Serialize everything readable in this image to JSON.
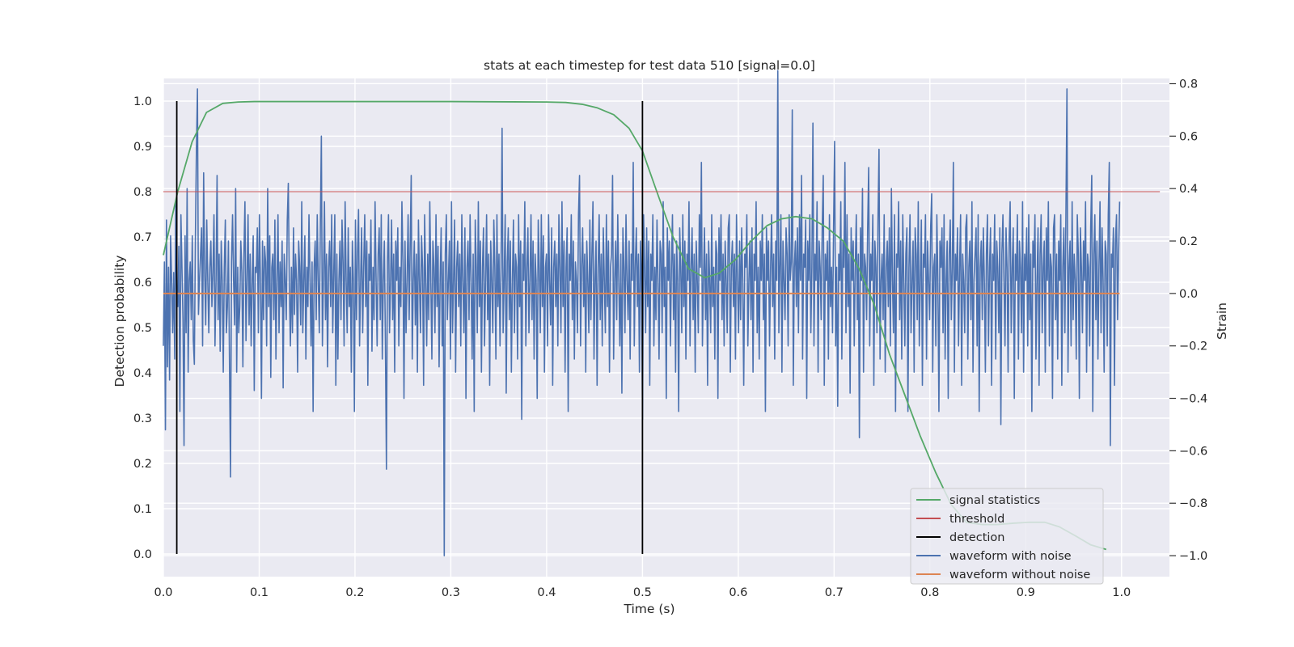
{
  "chart_data": {
    "type": "line",
    "title": "stats at each timestep for test data 510 [signal=0.0]",
    "xlabel": "Time (s)",
    "ylabel": "Detection probability",
    "y2label": "Strain",
    "xlim": [
      0.0,
      1.05
    ],
    "ylim": [
      -0.05,
      1.05
    ],
    "y2lim": [
      -1.08,
      0.82
    ],
    "x_ticks": [
      "0.0",
      "0.1",
      "0.2",
      "0.3",
      "0.4",
      "0.5",
      "0.6",
      "0.7",
      "0.8",
      "0.9",
      "1.0"
    ],
    "y_ticks": [
      "0.0",
      "0.1",
      "0.2",
      "0.3",
      "0.4",
      "0.5",
      "0.6",
      "0.7",
      "0.8",
      "0.9",
      "1.0"
    ],
    "y2_ticks": [
      "−1.0",
      "−0.8",
      "−0.6",
      "−0.4",
      "−0.2",
      "0.0",
      "0.2",
      "0.4",
      "0.6",
      "0.8"
    ],
    "grid": true,
    "legend_position": "lower-right",
    "colors": {
      "background": "#eaeaf2",
      "signal": "#55a868",
      "threshold": "#c44e52",
      "detection": "#000000",
      "noisy": "#4c72b0",
      "clean": "#dd8452"
    },
    "series": [
      {
        "name": "signal statistics",
        "axis": "left",
        "x": [
          0.0,
          0.015,
          0.03,
          0.045,
          0.062,
          0.078,
          0.095,
          0.2,
          0.3,
          0.4,
          0.42,
          0.437,
          0.453,
          0.47,
          0.486,
          0.5,
          0.515,
          0.532,
          0.548,
          0.565,
          0.58,
          0.597,
          0.613,
          0.63,
          0.645,
          0.66,
          0.677,
          0.693,
          0.71,
          0.726,
          0.742,
          0.758,
          0.774,
          0.79,
          0.806,
          0.822,
          0.838,
          0.855,
          0.87,
          0.887,
          0.903,
          0.92,
          0.935,
          0.952,
          0.968,
          0.984
        ],
        "values": [
          0.66,
          0.8,
          0.91,
          0.975,
          0.995,
          0.998,
          0.999,
          0.999,
          0.999,
          0.998,
          0.997,
          0.993,
          0.985,
          0.97,
          0.94,
          0.89,
          0.8,
          0.7,
          0.63,
          0.61,
          0.62,
          0.65,
          0.69,
          0.725,
          0.74,
          0.745,
          0.74,
          0.72,
          0.69,
          0.63,
          0.55,
          0.44,
          0.35,
          0.26,
          0.18,
          0.11,
          0.07,
          0.065,
          0.065,
          0.068,
          0.07,
          0.07,
          0.06,
          0.04,
          0.02,
          0.01
        ]
      },
      {
        "name": "threshold",
        "axis": "left",
        "x": [
          0.0,
          1.04
        ],
        "values": [
          0.8,
          0.8
        ]
      },
      {
        "name": "detection",
        "axis": "left",
        "x": [
          0.014,
          0.5
        ],
        "values": [
          1.0,
          1.0
        ]
      },
      {
        "name": "waveform with noise",
        "axis": "right",
        "x_start": 0.0,
        "x_end": 0.998,
        "values": [
          -0.2,
          0.12,
          -0.52,
          0.28,
          -0.28,
          0.1,
          -0.33,
          0.22,
          0.05,
          -0.15,
          0.08,
          -0.25,
          0.35,
          0.02,
          -0.05,
          0.18,
          -0.45,
          0.3,
          0.1,
          -0.1,
          -0.58,
          0.22,
          -0.15,
          0.4,
          -0.3,
          0.05,
          0.12,
          -0.1,
          0.22,
          -0.18,
          -0.27,
          0.2,
          0.55,
          0.78,
          -0.08,
          0.05,
          0.15,
          0.25,
          -0.2,
          0.46,
          0.08,
          -0.12,
          0.28,
          0.05,
          -0.15,
          0.1,
          0.2,
          -0.05,
          0.08,
          0.3,
          -0.2,
          0.05,
          0.45,
          -0.1,
          0.15,
          -0.22,
          0.2,
          0.05,
          -0.3,
          0.1,
          0.28,
          -0.15,
          -0.05,
          0.2,
          -0.25,
          -0.7,
          0.12,
          0.3,
          0.05,
          -0.12,
          0.4,
          -0.3,
          0.1,
          -0.15,
          -0.05,
          0.2,
          0.08,
          -0.28,
          0.15,
          0.35,
          -0.18,
          0.05,
          0.3,
          -0.12,
          0.15,
          -0.2,
          0.05,
          0.22,
          -0.37,
          0.1,
          0.08,
          0.25,
          -0.15,
          0.3,
          0.05,
          -0.4,
          0.2,
          -0.1,
          0.18,
          0.12,
          -0.2,
          0.4,
          -0.05,
          0.22,
          -0.32,
          0.1,
          0.15,
          -0.1,
          0.28,
          -0.25,
          0.05,
          0.3,
          -0.15,
          0.12,
          -0.05,
          0.2,
          -0.36,
          0.15,
          0.05,
          -0.1,
          0.28,
          0.42,
          0.02,
          -0.2,
          0.1,
          -0.15,
          0.25,
          -0.08,
          0.15,
          0.05,
          -0.3,
          0.2,
          0.1,
          -0.12,
          0.35,
          -0.15,
          0.05,
          0.22,
          -0.25,
          0.1,
          -0.05,
          0.3,
          0.05,
          -0.2,
          0.12,
          -0.45,
          0.1,
          0.2,
          -0.1,
          0.3,
          0.05,
          -0.15,
          0.25,
          0.6,
          -0.2,
          0.05,
          0.35,
          -0.1,
          0.15,
          -0.28,
          0.1,
          0.2,
          -0.05,
          0.3,
          -0.15,
          0.08,
          0.3,
          -0.35,
          0.15,
          -0.25,
          0.05,
          0.2,
          -0.1,
          0.28,
          0.12,
          -0.2,
          0.35,
          0.05,
          -0.15,
          0.25,
          -0.05,
          0.1,
          -0.3,
          0.2,
          0.05,
          -0.45,
          0.28,
          -0.1,
          0.15,
          0.32,
          -0.2,
          0.05,
          0.25,
          -0.15,
          0.1,
          0.3,
          -0.05,
          0.2,
          -0.35,
          0.15,
          0.05,
          0.28,
          -0.22,
          0.1,
          -0.1,
          0.35,
          0.05,
          -0.2,
          0.15,
          0.25,
          -0.1,
          0.3,
          -0.25,
          0.05,
          0.2,
          -0.18,
          -0.67,
          0.12,
          0.3,
          -0.15,
          0.05,
          0.28,
          -0.1,
          0.15,
          -0.3,
          0.2,
          0.05,
          0.25,
          -0.2,
          0.1,
          -0.05,
          0.35,
          0.12,
          -0.4,
          0.2,
          -0.15,
          0.05,
          0.3,
          -0.1,
          0.18,
          0.45,
          -0.25,
          0.05,
          0.2,
          -0.12,
          0.15,
          -0.3,
          0.28,
          0.05,
          -0.15,
          0.22,
          0.1,
          -0.35,
          0.3,
          0.05,
          -0.2,
          0.15,
          -0.1,
          0.35,
          0.05,
          -0.25,
          0.2,
          0.1,
          -0.15,
          0.3,
          -0.05,
          0.18,
          -0.28,
          0.05,
          0.25,
          -0.2,
          0.12,
          -1.0,
          0.15,
          0.3,
          -0.1,
          0.05,
          0.2,
          -0.25,
          0.35,
          -0.15,
          0.05,
          0.28,
          -0.3,
          0.1,
          0.2,
          -0.05,
          0.15,
          -0.2,
          0.3,
          0.05,
          -0.15,
          0.25,
          -0.4,
          0.1,
          0.2,
          -0.1,
          0.3,
          0.05,
          -0.25,
          0.15,
          -0.45,
          0.28,
          0.1,
          -0.15,
          0.35,
          -0.05,
          0.2,
          -0.3,
          0.1,
          0.25,
          -0.2,
          0.05,
          0.3,
          -0.1,
          0.15,
          -0.35,
          0.2,
          0.05,
          -0.15,
          0.28,
          0.1,
          -0.25,
          0.3,
          -0.05,
          0.15,
          -0.2,
          0.1,
          0.63,
          -0.15,
          0.05,
          0.3,
          -0.38,
          0.12,
          0.25,
          -0.1,
          0.2,
          -0.3,
          0.05,
          0.28,
          -0.15,
          0.15,
          0.1,
          -0.25,
          0.3,
          -0.05,
          0.2,
          -0.48,
          0.15,
          0.05,
          0.35,
          -0.2,
          0.1,
          0.25,
          -0.15,
          0.05,
          0.3,
          -0.1,
          0.2,
          -0.25,
          0.15,
          0.05,
          -0.4,
          0.28,
          0.1,
          -0.15,
          0.3,
          -0.05,
          0.22,
          -0.3,
          0.1,
          0.15,
          -0.2,
          0.3,
          0.05,
          -0.12,
          0.25,
          -0.35,
          0.1,
          0.2,
          -0.05,
          0.15,
          -0.2,
          0.3,
          0.1,
          -0.15,
          0.35,
          -0.05,
          0.2,
          -0.3,
          0.1,
          0.25,
          -0.45,
          0.15,
          0.05,
          0.3,
          -0.1,
          0.2,
          -0.25,
          0.12,
          0.05,
          -0.15,
          0.3,
          0.45,
          -0.2,
          0.1,
          0.25,
          -0.05,
          0.15,
          -0.3,
          0.2,
          0.05,
          -0.15,
          0.28,
          -0.1,
          0.15,
          0.35,
          -0.25,
          0.05,
          0.2,
          -0.35,
          0.1,
          0.3,
          -0.1,
          0.15,
          -0.2,
          0.25,
          0.05,
          -0.15,
          0.3,
          -0.05,
          0.2,
          -0.3,
          0.1,
          0.15,
          0.45,
          -0.25,
          0.05,
          0.2,
          -0.1,
          0.3,
          0.05,
          -0.2,
          0.15,
          -0.38,
          0.25,
          0.1,
          -0.15,
          0.3,
          0.05,
          -0.1,
          0.2,
          -0.25,
          0.15,
          0.05,
          0.5,
          -0.2,
          0.1,
          0.25,
          -0.05,
          0.15,
          -0.3,
          0.2,
          0.05,
          -0.48,
          0.3,
          0.1,
          -0.15,
          0.25,
          -0.05,
          0.2,
          -0.35,
          0.15,
          0.05,
          0.3,
          -0.2,
          0.1,
          -0.1,
          0.28,
          0.05,
          -0.25,
          0.2,
          0.15,
          -0.15,
          0.35,
          -0.05,
          0.1,
          -0.4,
          0.25,
          0.05,
          0.2,
          -0.2,
          0.1,
          0.3,
          -0.1,
          0.15,
          -0.3,
          0.2,
          0.05,
          -0.45,
          0.25,
          0.1,
          -0.15,
          0.3,
          -0.05,
          0.2,
          -0.25,
          0.15,
          0.05,
          0.35,
          -0.2,
          0.1,
          0.25,
          -0.1,
          0.15,
          -0.3,
          0.2,
          0.05,
          -0.15,
          0.3,
          0.1,
          0.5,
          -0.2,
          0.05,
          0.25,
          -0.1,
          0.15,
          -0.35,
          0.2,
          0.05,
          -0.15,
          0.3,
          -0.05,
          0.1,
          -0.25,
          0.2,
          0.15,
          -0.4,
          0.25,
          0.05,
          0.3,
          -0.1,
          0.15,
          -0.2,
          0.2,
          0.05,
          -0.15,
          0.25,
          0.3,
          -0.3,
          0.1,
          0.2,
          -0.05,
          0.15,
          -0.25,
          0.3,
          0.05,
          -0.15,
          0.2,
          -0.1,
          0.25,
          0.05,
          -0.35,
          0.15,
          0.1,
          0.3,
          -0.2,
          0.05,
          0.2,
          -0.1,
          0.25,
          -0.3,
          0.15,
          0.05,
          0.35,
          -0.15,
          0.1,
          -0.25,
          0.2,
          0.05,
          0.3,
          -0.1,
          0.15,
          -0.45,
          0.25,
          0.05,
          0.2,
          -0.2,
          0.1,
          0.3,
          -0.05,
          0.15,
          -0.25,
          0.2,
          0.05,
          0.85,
          -0.15,
          0.1,
          0.3,
          -0.3,
          0.2,
          0.05,
          -0.1,
          0.25,
          0.15,
          -0.2,
          0.3,
          0.05,
          0.12,
          0.7,
          -0.35,
          0.1,
          0.2,
          -0.05,
          0.25,
          -0.15,
          0.3,
          0.05,
          0.45,
          -0.25,
          0.15,
          0.1,
          0.28,
          -0.4,
          0.2,
          0.05,
          0.3,
          -0.15,
          0.1,
          0.65,
          -0.2,
          0.15,
          0.05,
          0.35,
          -0.3,
          0.2,
          0.1,
          -0.1,
          0.25,
          0.45,
          -0.35,
          0.15,
          0.05,
          0.2,
          -0.25,
          0.3,
          -0.05,
          0.1,
          -0.15,
          0.25,
          0.58,
          -0.2,
          0.1,
          -0.43,
          0.15,
          0.05,
          0.35,
          -0.25,
          0.2,
          0.1,
          0.5,
          -0.15,
          0.3,
          -0.05,
          0.15,
          -0.38,
          0.25,
          0.05,
          0.2,
          -0.2,
          0.1,
          0.3,
          -0.1,
          0.15,
          -0.55,
          0.25,
          0.05,
          0.4,
          -0.3,
          0.15,
          0.1,
          -0.1,
          0.25,
          0.48,
          -0.2,
          0.15,
          0.05,
          0.3,
          -0.35,
          0.2,
          0.1,
          -0.15,
          0.28,
          0.55,
          -0.25,
          0.05,
          0.15,
          -0.1,
          0.3,
          -0.3,
          0.1,
          0.2,
          -0.05,
          0.25,
          -0.2,
          0.4,
          0.05,
          -0.15,
          0.3,
          -0.45,
          0.15,
          0.1,
          0.35,
          -0.1,
          0.2,
          -0.25,
          0.3,
          0.05,
          -0.2,
          0.15,
          0.25,
          -0.45,
          0.1,
          0.3,
          -0.15,
          0.05,
          0.2,
          -0.3,
          0.25,
          0.15,
          -0.1,
          0.35,
          -0.2,
          0.05,
          0.28,
          -0.35,
          0.15,
          0.1,
          0.3,
          -0.25,
          0.2,
          0.05,
          -0.1,
          0.25,
          0.38,
          -0.3,
          0.1,
          0.15,
          -0.2,
          0.3,
          0.05,
          -0.45,
          0.2,
          0.1,
          0.25,
          -0.15,
          0.3,
          -0.25,
          0.05,
          0.2,
          -0.4,
          0.15,
          0.28,
          -0.1,
          0.1,
          0.5,
          -0.3,
          0.15,
          0.05,
          0.25,
          -0.2,
          0.1,
          0.3,
          -0.35,
          0.15,
          0.05,
          -0.15,
          0.25,
          0.3,
          -0.25,
          0.1,
          0.2,
          -0.1,
          0.35,
          -0.3,
          0.05,
          0.15,
          0.25,
          -0.2,
          0.3,
          -0.45,
          0.1,
          0.2,
          -0.1,
          0.25,
          0.05,
          -0.3,
          0.15,
          0.3,
          -0.2,
          0.1,
          0.25,
          -0.35,
          0.15,
          0.05,
          0.3,
          -0.25,
          0.2,
          0.1,
          -0.15,
          0.25,
          -0.5,
          0.15,
          0.3,
          0.05,
          -0.2,
          0.25,
          0.1,
          -0.3,
          0.2,
          0.35,
          -0.15,
          0.1,
          0.25,
          -0.4,
          0.15,
          0.05,
          0.3,
          -0.25,
          0.2,
          0.1,
          -0.15,
          0.35,
          -0.3,
          0.15,
          0.05,
          0.25,
          -0.2,
          0.3,
          -0.1,
          0.15,
          -0.45,
          0.2,
          0.1,
          0.3,
          -0.25,
          0.05,
          0.25,
          -0.35,
          0.15,
          0.3,
          -0.15,
          0.1,
          0.2,
          -0.3,
          0.25,
          0.05,
          0.35,
          -0.2,
          0.15,
          0.1,
          -0.4,
          0.25,
          0.3,
          -0.1,
          0.15,
          -0.25,
          0.2,
          0.05,
          0.3,
          -0.35,
          0.1,
          0.25,
          -0.15,
          0.3,
          0.78,
          -0.3,
          0.1,
          0.2,
          -0.2,
          0.35,
          -0.1,
          0.15,
          0.05,
          -0.25,
          0.3,
          0.15,
          -0.4,
          0.25,
          0.1,
          -0.15,
          0.2,
          0.05,
          0.35,
          -0.3,
          0.15,
          0.1,
          -0.2,
          0.25,
          0.45,
          -0.45,
          0.15,
          0.3,
          -0.1,
          0.2,
          -0.25,
          0.1,
          0.35,
          -0.15,
          0.25,
          0.05,
          -0.3,
          0.2,
          0.15,
          -0.2,
          0.3,
          0.5,
          -0.58,
          0.15,
          0.1,
          0.25,
          -0.35,
          0.2,
          0.3,
          -0.1,
          0.15,
          0.35
        ]
      },
      {
        "name": "waveform without noise",
        "axis": "right",
        "x": [
          0.0,
          0.998
        ],
        "values": [
          0.0,
          0.0
        ]
      }
    ]
  }
}
